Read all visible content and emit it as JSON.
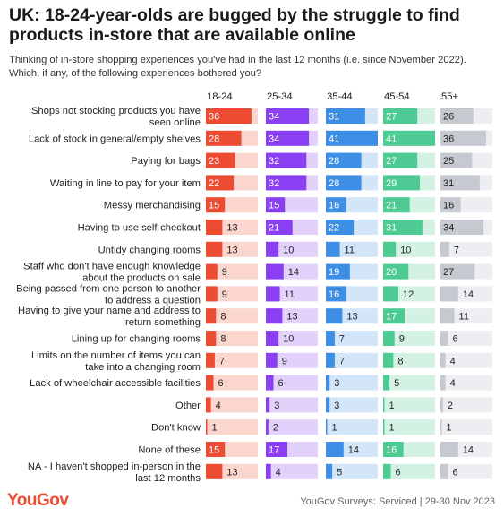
{
  "title": "UK: 18-24-year-olds are bugged by the struggle to find products in-store that are available online",
  "subtitle": "Thinking of in-store shopping experiences you've had in the last 12 months (i.e. since November 2022). Which, if any, of the following experiences bothered you?",
  "brand": "YouGov",
  "source": "YouGov Surveys: Serviced | 29-30 Nov 2023",
  "chart_data": {
    "type": "bar",
    "categories": [
      [
        "Shops not stocking products you have",
        "seen online"
      ],
      [
        "Lack of stock in general/empty shelves"
      ],
      [
        "Paying for bags"
      ],
      [
        "Waiting in line to pay for your item"
      ],
      [
        "Messy merchandising"
      ],
      [
        "Having to use self-checkout"
      ],
      [
        "Untidy changing rooms"
      ],
      [
        "Staff who don't have enough knowledge",
        "about the products on sale"
      ],
      [
        "Being passed from one person to another",
        "to address a question"
      ],
      [
        "Having to give your name and address to",
        "return something"
      ],
      [
        "Lining up for changing rooms"
      ],
      [
        "Limits on the number of items you can",
        "take into a changing room"
      ],
      [
        "Lack of wheelchair accessible facilities"
      ],
      [
        "Other"
      ],
      [
        "Don't know"
      ],
      [
        "None of these"
      ],
      [
        "NA - I haven't shopped in-person in the",
        "last 12 months"
      ]
    ],
    "series": [
      {
        "name": "18-24",
        "color": "#ee4b33",
        "light": "#fbd6cf",
        "values": [
          36,
          28,
          23,
          22,
          15,
          13,
          13,
          9,
          9,
          8,
          8,
          7,
          6,
          4,
          1,
          15,
          13
        ]
      },
      {
        "name": "25-34",
        "color": "#8a3ff2",
        "light": "#e2d2fb",
        "values": [
          34,
          34,
          32,
          32,
          15,
          21,
          10,
          14,
          11,
          13,
          10,
          9,
          6,
          3,
          2,
          17,
          4
        ]
      },
      {
        "name": "35-44",
        "color": "#3d8fe6",
        "light": "#d3e5f9",
        "values": [
          31,
          41,
          28,
          28,
          16,
          22,
          11,
          19,
          16,
          13,
          7,
          7,
          3,
          3,
          1,
          14,
          5
        ]
      },
      {
        "name": "45-54",
        "color": "#4ecb94",
        "light": "#d4f2e3",
        "values": [
          27,
          41,
          27,
          29,
          21,
          31,
          10,
          20,
          12,
          17,
          9,
          8,
          5,
          1,
          1,
          16,
          6
        ]
      },
      {
        "name": "55+",
        "color": "#c6cad0",
        "light": "#eceef1",
        "values": [
          26,
          36,
          25,
          31,
          16,
          34,
          7,
          27,
          14,
          11,
          6,
          4,
          4,
          2,
          1,
          14,
          6
        ]
      }
    ],
    "xlim": [
      0,
      41
    ],
    "grid": false,
    "legend": "column headers"
  }
}
